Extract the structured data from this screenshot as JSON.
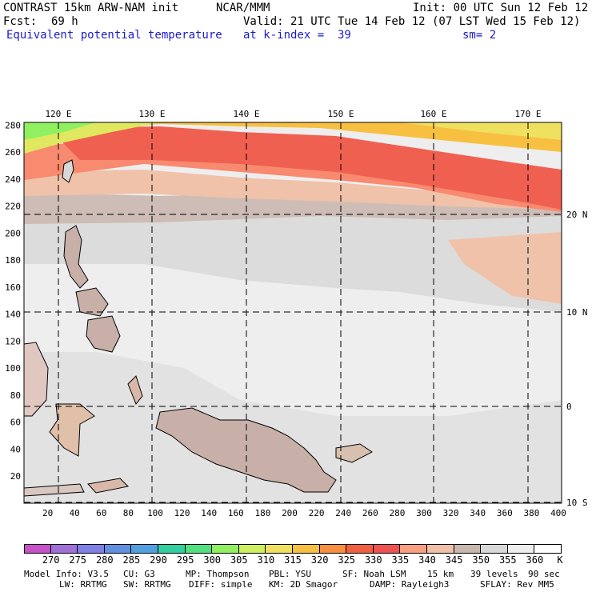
{
  "header": {
    "title_left": "CONTRAST 15km ARW-NAM init",
    "title_org": "NCAR/MMM",
    "init": "Init: 00 UTC Sun 12 Feb 12",
    "fcst_label": "Fcst:",
    "fcst_value": "69 h",
    "valid": "Valid: 21 UTC Tue 14 Feb 12 (07 LST Wed 15 Feb 12)",
    "field": "Equivalent potential temperature",
    "level": "at k-index =  39",
    "smooth": "sm= 2"
  },
  "map": {
    "lon_labels": [
      "120 E",
      "130 E",
      "140 E",
      "150 E",
      "160 E",
      "170 E"
    ],
    "lat_labels": [
      "20 N",
      "10 N",
      "0",
      "10 S"
    ],
    "x_ticks": [
      "20",
      "40",
      "60",
      "80",
      "100",
      "120",
      "140",
      "160",
      "180",
      "200",
      "220",
      "240",
      "260",
      "280",
      "300",
      "320",
      "340",
      "360",
      "380",
      "400"
    ],
    "y_ticks": [
      "20",
      "40",
      "60",
      "80",
      "100",
      "120",
      "140",
      "160",
      "180",
      "200",
      "220",
      "240",
      "260",
      "280"
    ]
  },
  "colorbar": {
    "labels": [
      "270",
      "275",
      "280",
      "285",
      "290",
      "295",
      "300",
      "305",
      "310",
      "315",
      "320",
      "325",
      "330",
      "335",
      "340",
      "345",
      "350",
      "355",
      "360"
    ],
    "unit": "K",
    "colors": [
      "#c850c8",
      "#a070d8",
      "#8080e8",
      "#6090e0",
      "#50a0e0",
      "#30d0a0",
      "#50e080",
      "#90f060",
      "#d0f060",
      "#f0e060",
      "#f8c040",
      "#f89040",
      "#f06040",
      "#f05050",
      "#f8a080",
      "#f0c0a8",
      "#c8b8b0",
      "#d8d8d8",
      "#eeeeee",
      "#ffffff"
    ]
  },
  "footer": {
    "line1": [
      "Model Info: V3.5",
      "CU: G3",
      "MP: Thompson",
      "PBL: YSU",
      "SF: Noah LSM",
      "15 km",
      "39 levels",
      "90 sec"
    ],
    "line2": [
      "LW: RRTMG",
      "SW: RRTMG",
      "DIFF: simple",
      "KM: 2D Smagor",
      "DAMP: Rayleigh3",
      "SFLAY: Rev MM5"
    ]
  }
}
